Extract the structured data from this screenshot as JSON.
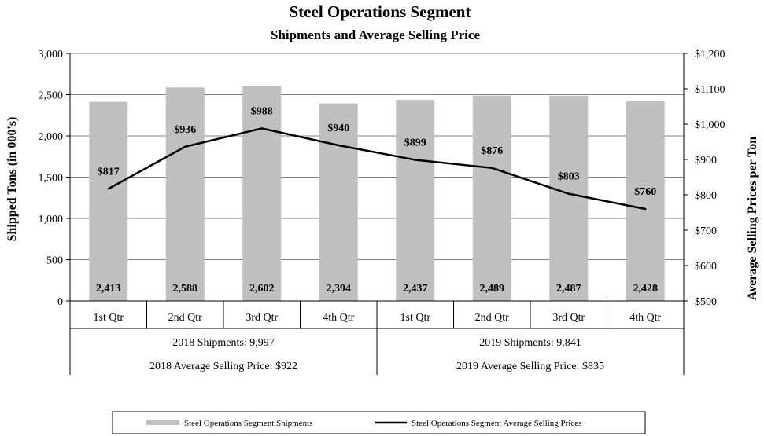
{
  "chart_data": {
    "type": "bar",
    "title": "Steel Operations Segment",
    "subtitle": "Shipments and Average Selling Price",
    "categories": [
      "1st Qtr",
      "2nd Qtr",
      "3rd Qtr",
      "4th Qtr",
      "1st Qtr",
      "2nd Qtr",
      "3rd Qtr",
      "4th Qtr"
    ],
    "series": [
      {
        "name": "Steel Operations Segment Shipments",
        "axis": "left",
        "kind": "bar",
        "color": "#c0c0c0",
        "values": [
          2413,
          2588,
          2602,
          2394,
          2437,
          2489,
          2487,
          2428
        ],
        "labels": [
          "2,413",
          "2,588",
          "2,602",
          "2,394",
          "2,437",
          "2,489",
          "2,487",
          "2,428"
        ]
      },
      {
        "name": "Steel Operations Segment Average Selling Prices",
        "axis": "right",
        "kind": "line",
        "color": "#000000",
        "values": [
          817,
          936,
          988,
          940,
          899,
          876,
          803,
          760
        ],
        "labels": [
          "$817",
          "$936",
          "$988",
          "$940",
          "$899",
          "$876",
          "$803",
          "$760"
        ]
      }
    ],
    "ylabel_left": "Shipped Tons (in 000's)",
    "ylabel_right": "Average Selling Prices per Ton",
    "ylim_left": [
      0,
      3000
    ],
    "ylim_right": [
      500,
      1200
    ],
    "yticks_left": [
      "0",
      "500",
      "1,000",
      "1,500",
      "2,000",
      "2,500",
      "3,000"
    ],
    "yticks_right": [
      "$500",
      "$600",
      "$700",
      "$800",
      "$900",
      "$1,000",
      "$1,100",
      "$1,200"
    ],
    "grid": true,
    "groups": [
      {
        "shipments": "2018 Shipments: 9,997",
        "price": "2018 Average Selling Price: $922"
      },
      {
        "shipments": "2019 Shipments: 9,841",
        "price": "2019 Average Selling Price: $835"
      }
    ],
    "legend_position": "bottom"
  }
}
